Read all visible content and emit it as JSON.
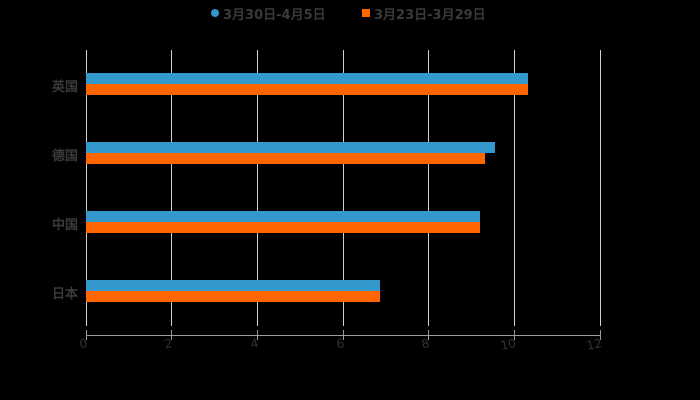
{
  "chart_data": {
    "type": "bar",
    "orientation": "horizontal",
    "title": "",
    "categories": [
      "英国",
      "德国",
      "中国",
      "日本"
    ],
    "series": [
      {
        "name": "3月30日-4月5日",
        "color": "#3399cc",
        "values": [
          10.32,
          9.55,
          9.2,
          6.86
        ]
      },
      {
        "name": "3月23日-3月29日",
        "color": "#ff6600",
        "values": [
          10.32,
          9.32,
          9.2,
          6.86
        ]
      }
    ],
    "xlabel": "",
    "ylabel": "",
    "xlim": [
      0,
      12
    ],
    "xticks": [
      "0",
      "2",
      "4",
      "6",
      "8",
      "10",
      "12"
    ],
    "grid": true,
    "legend_position": "top"
  },
  "legend": {
    "items": [
      {
        "label": "3月30日-4月5日",
        "color": "#3399cc",
        "shape": "circle"
      },
      {
        "label": "3月23日-3月29日",
        "color": "#ff6600",
        "shape": "square"
      }
    ]
  }
}
